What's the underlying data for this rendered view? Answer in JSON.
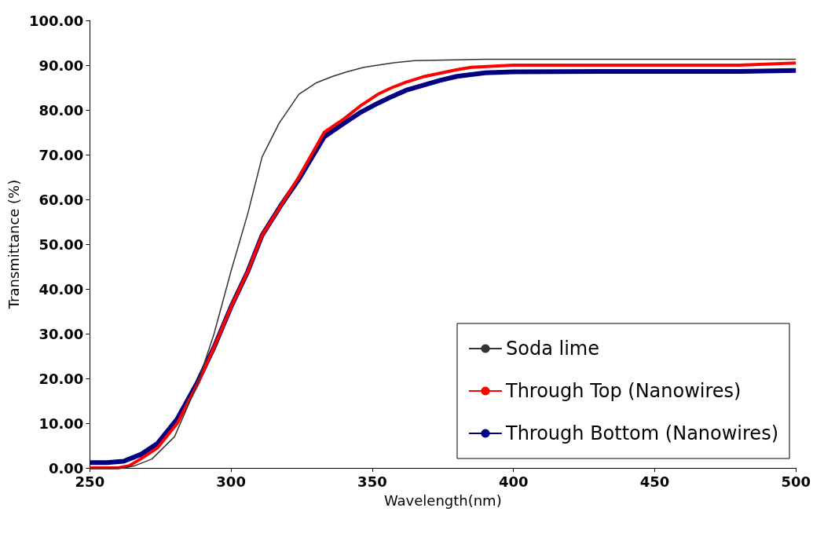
{
  "chart_data": {
    "type": "line",
    "xlabel": "Wavelength(nm)",
    "ylabel": "Transmittance (%)",
    "xlim": [
      250,
      500
    ],
    "xticks": [
      250,
      300,
      350,
      400,
      450,
      500
    ],
    "ylim": [
      0,
      100
    ],
    "yticks": [
      {
        "value": 0,
        "label": "0.00"
      },
      {
        "value": 10,
        "label": "10.00"
      },
      {
        "value": 20,
        "label": "20.00"
      },
      {
        "value": 30,
        "label": "30.00"
      },
      {
        "value": 40,
        "label": "40.00"
      },
      {
        "value": 50,
        "label": "50.00"
      },
      {
        "value": 60,
        "label": "60.00"
      },
      {
        "value": 70,
        "label": "70.00"
      },
      {
        "value": 80,
        "label": "80.00"
      },
      {
        "value": 90,
        "label": "90.00"
      },
      {
        "value": 100,
        "label": "100.00"
      }
    ],
    "grid": false,
    "legend": "bottom right",
    "marker": "none",
    "line_style": "solid",
    "series": [
      {
        "name": "Soda lime",
        "color": "#333333",
        "x": [
          250,
          262,
          266,
          272,
          280,
          288,
          294,
          300,
          306,
          311,
          317,
          324,
          330,
          336,
          341,
          347,
          352,
          357,
          365,
          390,
          420,
          460,
          480,
          500
        ],
        "values": [
          0,
          0,
          0.5,
          2,
          7,
          18.6,
          30,
          44,
          57,
          69.5,
          77,
          83.5,
          86,
          87.5,
          88.5,
          89.5,
          90,
          90.5,
          91,
          91.3,
          91.3,
          91.3,
          91.3,
          91.3
        ]
      },
      {
        "name": "Through Top (Nanowires)",
        "color": "#ff0000",
        "x": [
          250,
          260,
          264,
          268,
          274,
          281,
          288,
          294,
          300,
          306,
          311,
          318,
          324,
          333,
          340,
          346,
          352,
          357,
          362,
          368,
          374,
          380,
          385,
          400,
          440,
          480,
          500
        ],
        "values": [
          0,
          0,
          0.5,
          2,
          4.5,
          10,
          18.6,
          27,
          36,
          44,
          52,
          59,
          65,
          75,
          78,
          81,
          83.5,
          85,
          86.2,
          87.4,
          88.2,
          89,
          89.5,
          90,
          90,
          90,
          90.5
        ]
      },
      {
        "name": "Through Bottom (Nanowires)",
        "color": "#000080",
        "x": [
          250,
          256,
          262,
          268,
          274,
          281,
          288,
          294,
          300,
          306,
          311,
          318,
          324,
          333,
          340,
          346,
          352,
          357,
          362,
          368,
          374,
          380,
          390,
          400,
          440,
          480,
          500
        ],
        "values": [
          1.2,
          1.2,
          1.5,
          3,
          5.5,
          11,
          19,
          27,
          36,
          44,
          52,
          59,
          64.5,
          74,
          77,
          79.5,
          81.5,
          83,
          84.4,
          85.5,
          86.6,
          87.5,
          88.3,
          88.5,
          88.6,
          88.6,
          88.8
        ]
      }
    ]
  }
}
